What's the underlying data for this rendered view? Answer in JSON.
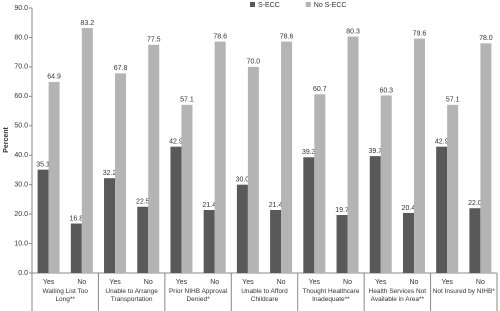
{
  "chart_data": {
    "type": "bar",
    "y_label": "Percent",
    "categories": [
      "Yes",
      "No",
      "Yes",
      "No",
      "Yes",
      "No",
      "Yes",
      "No",
      "Yes",
      "No",
      "Yes",
      "No",
      "Yes",
      "No"
    ],
    "groups": [
      "Waiting List Too Long**",
      "Unable to Arrange Transportation",
      "Prior NIHB Approval Denied*",
      "Unable to Afford Childcare",
      "Thought Healthcare Inadequate**",
      "Health Services Not Available in Area**",
      "Not Insured by NIHB*"
    ],
    "series": [
      {
        "name": "S-ECC",
        "color": "#595959",
        "values": [
          35.1,
          16.8,
          32.2,
          22.5,
          42.9,
          21.4,
          30,
          21.4,
          39.3,
          19.7,
          39.7,
          20.4,
          42.9,
          22
        ],
        "value_labels": [
          "35.1",
          "16.8",
          "32.2",
          "22.5",
          "42.9",
          "21.4",
          "30.0",
          "21.4",
          "39.3",
          "19.7",
          "39.7",
          "20.4",
          "42.9",
          "22.0"
        ]
      },
      {
        "name": "No S-ECC",
        "color": "#b4b4b4",
        "values": [
          64.9,
          83.2,
          67.8,
          77.5,
          57.1,
          78.6,
          70,
          78.6,
          60.7,
          80.3,
          60.3,
          79.6,
          57.1,
          78
        ],
        "value_labels": [
          "64.9",
          "83.2",
          "67.8",
          "77.5",
          "57.1",
          "78.6",
          "70.0",
          "78.6",
          "60.7",
          "80.3",
          "60.3",
          "79.6",
          "57.1",
          "78.0"
        ]
      }
    ],
    "ylim": [
      0,
      90
    ],
    "yticks": [
      {
        "value": 0,
        "label": "0.0"
      },
      {
        "value": 10,
        "label": "10.0"
      },
      {
        "value": 20,
        "label": "20.0"
      },
      {
        "value": 30,
        "label": "30.0"
      },
      {
        "value": 40,
        "label": "40.0"
      },
      {
        "value": 50,
        "label": "50.0"
      },
      {
        "value": 60,
        "label": "60.0"
      },
      {
        "value": 70,
        "label": "70.0"
      },
      {
        "value": 80,
        "label": "80.0"
      },
      {
        "value": 90,
        "label": "90.0"
      }
    ],
    "grid": false,
    "legend": "top"
  }
}
